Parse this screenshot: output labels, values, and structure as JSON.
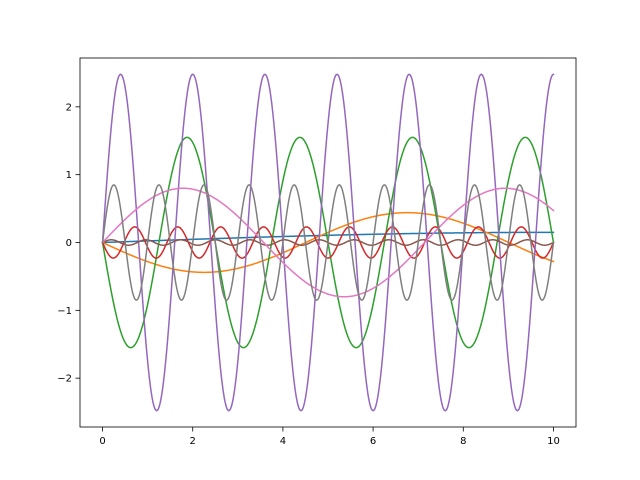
{
  "chart_data": {
    "type": "line",
    "title": "",
    "xlabel": "",
    "ylabel": "",
    "xlim": [
      -0.5,
      10.5
    ],
    "ylim": [
      -2.72,
      2.72
    ],
    "x_ticks": [
      0,
      2,
      4,
      6,
      8,
      10
    ],
    "x_tick_labels": [
      "0",
      "2",
      "4",
      "6",
      "8",
      "10"
    ],
    "y_ticks": [
      -2,
      -1,
      0,
      1,
      2
    ],
    "y_tick_labels": [
      "−2",
      "−1",
      "0",
      "1",
      "2"
    ],
    "grid": false,
    "legend": "none",
    "x_range": [
      0,
      10
    ],
    "series": [
      {
        "color": "#1f77b4",
        "amplitude": 0.15,
        "frequency": 0.025,
        "phase": 0
      },
      {
        "color": "#ff7f0e",
        "amplitude": 0.44,
        "frequency": 0.111,
        "phase": 3.14159
      },
      {
        "color": "#2ca02c",
        "amplitude": 1.55,
        "frequency": 0.4,
        "phase": 3.14159
      },
      {
        "color": "#d62728",
        "amplitude": 0.23,
        "frequency": 1.05,
        "phase": 3.14159
      },
      {
        "color": "#9467bd",
        "amplitude": 2.48,
        "frequency": 0.625,
        "phase": 0
      },
      {
        "color": "#8c564b",
        "amplitude": 0.04,
        "frequency": 1.3,
        "phase": 0
      },
      {
        "color": "#e377c2",
        "amplitude": 0.8,
        "frequency": 0.14,
        "phase": 0
      },
      {
        "color": "#7f7f7f",
        "amplitude": 0.85,
        "frequency": 1.0,
        "phase": 0
      }
    ]
  }
}
